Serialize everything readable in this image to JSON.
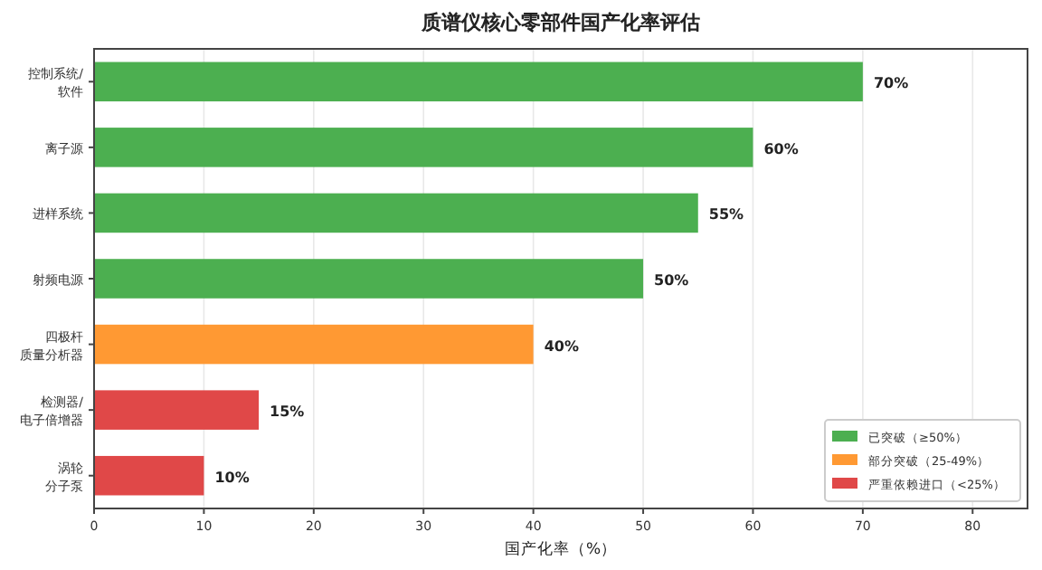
{
  "chart_data": {
    "type": "bar",
    "orientation": "horizontal",
    "title": "质谱仪核心零部件国产化率评估",
    "xlabel": "国产化率（%）",
    "categories": [
      "控制系统/软件",
      "离子源",
      "进样系统",
      "射频电源",
      "四极杆质量分析器",
      "检测器/电子倍增器",
      "涡轮分子泵"
    ],
    "series": [
      {
        "name": "已突破（≥50%）",
        "color": "#4caf50",
        "values": [
          70,
          60,
          55,
          50,
          null,
          null,
          null
        ],
        "value_labels": [
          "70%",
          "60%",
          "55%",
          "50%",
          null,
          null,
          null
        ]
      },
      {
        "name": "部分突破（25-49%）",
        "color": "#ff9933",
        "values": [
          null,
          null,
          null,
          null,
          40,
          null,
          null
        ],
        "value_labels": [
          null,
          null,
          null,
          null,
          "40%",
          null,
          null
        ]
      },
      {
        "name": "严重依赖进口（<25%）",
        "color": "#e04848",
        "values": [
          null,
          null,
          null,
          null,
          null,
          15,
          10
        ],
        "value_labels": [
          null,
          null,
          null,
          null,
          null,
          "15%",
          "10%"
        ]
      }
    ],
    "xlim": [
      0,
      85
    ],
    "xticks": [
      0,
      10,
      20,
      30,
      40,
      50,
      60,
      70,
      80
    ],
    "grid": "x",
    "legend": "bottom right"
  }
}
